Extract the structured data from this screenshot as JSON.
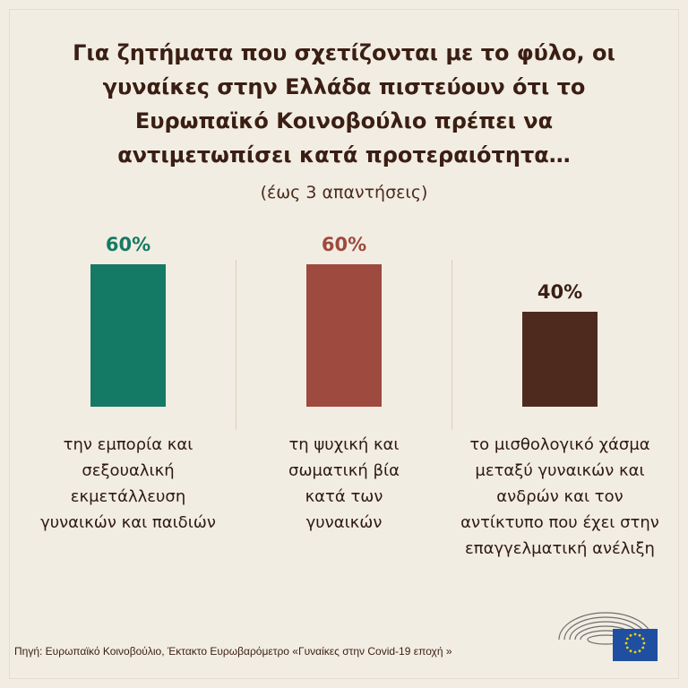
{
  "title": "Για ζητήματα που σχετίζονται με το φύλο, οι\nγυναίκες στην Ελλάδα πιστεύουν ότι το\nΕυρωπαϊκό Κοινοβούλιο πρέπει να\nαντιμετωπίσει κατά προτεραιότητα…",
  "subtitle": "(έως 3 απαντήσεις)",
  "source": "Πηγή: Ευρωπαϊκό Κοινοβούλιο, Έκτακτο Ευρωβαρόμετρο «Γυναίκες στην Covid-19 εποχή »",
  "chart_data": {
    "type": "bar",
    "categories": [
      "την εμπορία και\nσεξουαλική\nεκμετάλλευση\nγυναικών και παιδιών",
      "τη ψυχική και\nσωματική βία\nκατά των\nγυναικών",
      "το μισθολογικό χάσμα\nμεταξύ γυναικών και\nανδρών και τον\nαντίκτυπο που έχει στην\nεπαγγελματική ανέλιξη"
    ],
    "values": [
      60,
      60,
      40
    ],
    "value_labels": [
      "60%",
      "60%",
      "40%"
    ],
    "colors": [
      "#157a65",
      "#9e4a3f",
      "#4e2a1e"
    ],
    "ylim": [
      0,
      80
    ],
    "grid": false
  }
}
